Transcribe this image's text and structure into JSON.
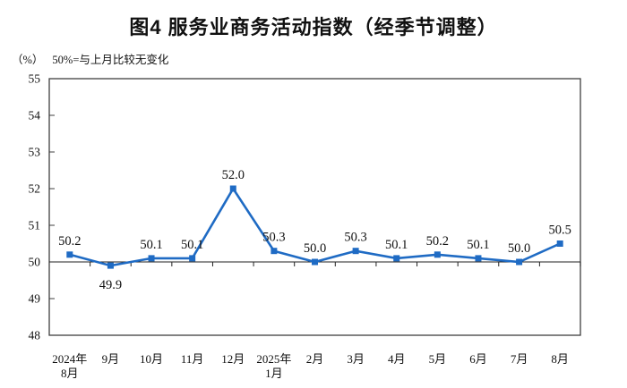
{
  "title": "图4 服务业商务活动指数（经季节调整）",
  "unit_label": "（%）",
  "baseline_note": "50%=与上月比较无变化",
  "chart_data": {
    "type": "line",
    "title": "图4 服务业商务活动指数（经季节调整）",
    "categories": [
      [
        "2024年",
        "8月"
      ],
      [
        "9月"
      ],
      [
        "10月"
      ],
      [
        "11月"
      ],
      [
        "12月"
      ],
      [
        "2025年",
        "1月"
      ],
      [
        "2月"
      ],
      [
        "3月"
      ],
      [
        "4月"
      ],
      [
        "5月"
      ],
      [
        "6月"
      ],
      [
        "7月"
      ],
      [
        "8月"
      ]
    ],
    "values": [
      50.2,
      49.9,
      50.1,
      50.1,
      52.0,
      50.3,
      50.0,
      50.3,
      50.1,
      50.2,
      50.1,
      50.0,
      50.5
    ],
    "data_labels": [
      "50.2",
      "49.9",
      "50.1",
      "50.1",
      "52.0",
      "50.3",
      "50.0",
      "50.3",
      "50.1",
      "50.2",
      "50.1",
      "50.0",
      "50.5"
    ],
    "label_below_indices": [
      1
    ],
    "ylim": [
      48,
      55
    ],
    "yticks": [
      48,
      49,
      50,
      51,
      52,
      53,
      54,
      55
    ],
    "baseline_value": 50,
    "ylabel_unit": "（%）",
    "annotation": "50%=与上月比较无变化",
    "line_color": "#1F6BC4",
    "marker": "square",
    "axis_color": "#3f3f3f",
    "grid": false,
    "legend": "none",
    "xlabel": "",
    "ylabel": ""
  }
}
